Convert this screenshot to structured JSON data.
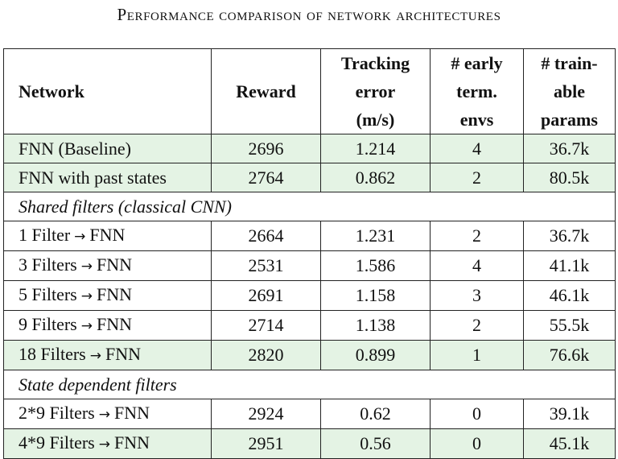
{
  "caption": "Performance comparison of network architectures",
  "table": {
    "headers": [
      {
        "l1": "Network",
        "l2": "",
        "l3": ""
      },
      {
        "l1": "Reward",
        "l2": "",
        "l3": ""
      },
      {
        "l1": "Tracking",
        "l2": "error",
        "l3": "(m/s)"
      },
      {
        "l1": "# early",
        "l2": "term.",
        "l3": "envs"
      },
      {
        "l1": "# train-",
        "l2": "able",
        "l3": "params"
      }
    ],
    "rows": [
      {
        "name": "FNN (Baseline)",
        "reward": "2696",
        "error": "1.214",
        "early": "4",
        "params": "36.7k"
      },
      {
        "name": "FNN with past states",
        "reward": "2764",
        "error": "0.862",
        "early": "2",
        "params": "80.5k"
      },
      {
        "name": "Shared filters (classical CNN)"
      },
      {
        "name_pre": "1 Filter",
        "arrow": "→",
        "name_post": "FNN",
        "reward": "2664",
        "error": "1.231",
        "early": "2",
        "params": "36.7k"
      },
      {
        "name_pre": "3 Filters",
        "arrow": "→",
        "name_post": "FNN",
        "reward": "2531",
        "error": "1.586",
        "early": "4",
        "params": "41.1k"
      },
      {
        "name_pre": "5 Filters",
        "arrow": "→",
        "name_post": "FNN",
        "reward": "2691",
        "error": "1.158",
        "early": "3",
        "params": "46.1k"
      },
      {
        "name_pre": "9 Filters",
        "arrow": "→",
        "name_post": "FNN",
        "reward": "2714",
        "error": "1.138",
        "early": "2",
        "params": "55.5k"
      },
      {
        "name_pre": "18 Filters",
        "arrow": "→",
        "name_post": "FNN",
        "reward": "2820",
        "error": "0.899",
        "early": "1",
        "params": "76.6k"
      },
      {
        "name": "State dependent filters"
      },
      {
        "name_pre": "2*9 Filters",
        "arrow": "→",
        "name_post": "FNN",
        "reward": "2924",
        "error": "0.62",
        "early": "0",
        "params": "39.1k"
      },
      {
        "name_pre": "4*9 Filters",
        "arrow": "→",
        "name_post": "FNN",
        "reward": "2951",
        "error": "0.56",
        "early": "0",
        "params": "45.1k"
      }
    ]
  }
}
